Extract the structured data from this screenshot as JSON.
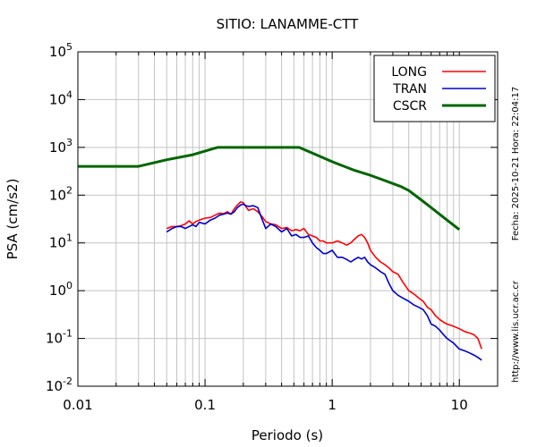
{
  "chart_data": {
    "type": "line",
    "title": "SITIO: LANAMME-CTT",
    "xlabel": "Periodo (s)",
    "ylabel": "PSA (cm/s2)",
    "xscale": "log",
    "yscale": "log",
    "xlim": [
      0.01,
      20
    ],
    "ylim": [
      0.01,
      100000
    ],
    "grid": true,
    "legend_position": "top-right",
    "x_ticks": [
      {
        "value": 0.01,
        "label": "0.01"
      },
      {
        "value": 0.1,
        "label": "0.1"
      },
      {
        "value": 1,
        "label": "1"
      },
      {
        "value": 10,
        "label": "10"
      }
    ],
    "y_ticks": [
      {
        "value": 0.01,
        "base": "10",
        "exp": "-2"
      },
      {
        "value": 0.1,
        "base": "10",
        "exp": "-1"
      },
      {
        "value": 1,
        "base": "10",
        "exp": "0"
      },
      {
        "value": 10,
        "base": "10",
        "exp": "1"
      },
      {
        "value": 100,
        "base": "10",
        "exp": "2"
      },
      {
        "value": 1000,
        "base": "10",
        "exp": "3"
      },
      {
        "value": 10000,
        "base": "10",
        "exp": "4"
      },
      {
        "value": 100000,
        "base": "10",
        "exp": "5"
      }
    ],
    "series": [
      {
        "name": "LONG",
        "color": "#ff0000",
        "x": [
          0.05,
          0.055,
          0.06,
          0.065,
          0.07,
          0.075,
          0.08,
          0.085,
          0.09,
          0.1,
          0.11,
          0.12,
          0.13,
          0.14,
          0.15,
          0.16,
          0.17,
          0.18,
          0.19,
          0.2,
          0.21,
          0.22,
          0.24,
          0.26,
          0.28,
          0.3,
          0.33,
          0.36,
          0.4,
          0.44,
          0.48,
          0.52,
          0.56,
          0.6,
          0.65,
          0.7,
          0.75,
          0.8,
          0.85,
          0.9,
          1.0,
          1.1,
          1.2,
          1.3,
          1.4,
          1.5,
          1.6,
          1.7,
          1.8,
          1.9,
          2.0,
          2.2,
          2.4,
          2.6,
          2.8,
          3.0,
          3.3,
          3.6,
          4.0,
          4.4,
          4.8,
          5.2,
          5.6,
          6.0,
          6.5,
          7.0,
          7.5,
          8.0,
          9.0,
          10.0,
          11.0,
          12.0,
          13.0,
          14.0,
          15.0
        ],
        "y": [
          20,
          22,
          22,
          23,
          25,
          29,
          25,
          28,
          30,
          33,
          34,
          38,
          42,
          41,
          45,
          40,
          52,
          62,
          72,
          70,
          57,
          48,
          52,
          45,
          36,
          28,
          25,
          24,
          20,
          21,
          18,
          19,
          18,
          20,
          15,
          14,
          13,
          11,
          11,
          10,
          10,
          11,
          10,
          9,
          10,
          12,
          14,
          15,
          13,
          10,
          7,
          5,
          4,
          3.5,
          3,
          2.5,
          2.2,
          1.5,
          1.0,
          0.85,
          0.7,
          0.6,
          0.45,
          0.4,
          0.3,
          0.25,
          0.22,
          0.2,
          0.18,
          0.16,
          0.14,
          0.13,
          0.12,
          0.1,
          0.06
        ]
      },
      {
        "name": "TRAN",
        "color": "#0000cc",
        "x": [
          0.05,
          0.055,
          0.06,
          0.065,
          0.07,
          0.075,
          0.08,
          0.085,
          0.09,
          0.1,
          0.11,
          0.12,
          0.13,
          0.14,
          0.15,
          0.16,
          0.17,
          0.18,
          0.19,
          0.2,
          0.21,
          0.22,
          0.24,
          0.26,
          0.28,
          0.3,
          0.33,
          0.36,
          0.4,
          0.44,
          0.48,
          0.52,
          0.56,
          0.6,
          0.65,
          0.7,
          0.75,
          0.8,
          0.85,
          0.9,
          1.0,
          1.1,
          1.2,
          1.3,
          1.4,
          1.5,
          1.6,
          1.7,
          1.8,
          1.9,
          2.0,
          2.2,
          2.4,
          2.6,
          2.8,
          3.0,
          3.3,
          3.6,
          4.0,
          4.4,
          4.8,
          5.2,
          5.6,
          6.0,
          6.5,
          7.0,
          7.5,
          8.0,
          9.0,
          10.0,
          11.0,
          12.0,
          13.0,
          14.0,
          15.0
        ],
        "y": [
          17,
          20,
          22,
          22,
          20,
          22,
          24,
          22,
          27,
          25,
          30,
          33,
          38,
          40,
          42,
          40,
          45,
          55,
          62,
          65,
          60,
          58,
          60,
          55,
          32,
          20,
          25,
          22,
          17,
          20,
          14,
          15,
          13,
          13,
          14,
          10,
          8,
          7,
          6,
          6,
          7,
          5,
          5,
          4.5,
          4,
          4.5,
          5,
          4.6,
          5,
          4,
          3.5,
          3,
          2.5,
          2.2,
          1.4,
          1.0,
          0.8,
          0.7,
          0.6,
          0.5,
          0.45,
          0.4,
          0.3,
          0.2,
          0.18,
          0.15,
          0.12,
          0.1,
          0.08,
          0.06,
          0.055,
          0.05,
          0.045,
          0.04,
          0.035
        ]
      },
      {
        "name": "CSCR",
        "color": "#006600",
        "x": [
          0.01,
          0.03,
          0.05,
          0.08,
          0.125,
          0.55,
          0.8,
          1.0,
          1.5,
          2.0,
          2.5,
          3.0,
          3.5,
          4.0,
          5.0,
          6.0,
          8.0,
          10.0
        ],
        "y": [
          400,
          400,
          550,
          700,
          1000,
          1000,
          650,
          500,
          330,
          260,
          210,
          175,
          150,
          125,
          80,
          55,
          30,
          19
        ]
      }
    ]
  },
  "side_texts": {
    "timestamp": "Fecha: 2025-10-21 Hora: 22:04:17",
    "url": "http://www.lis.ucr.ac.cr"
  }
}
